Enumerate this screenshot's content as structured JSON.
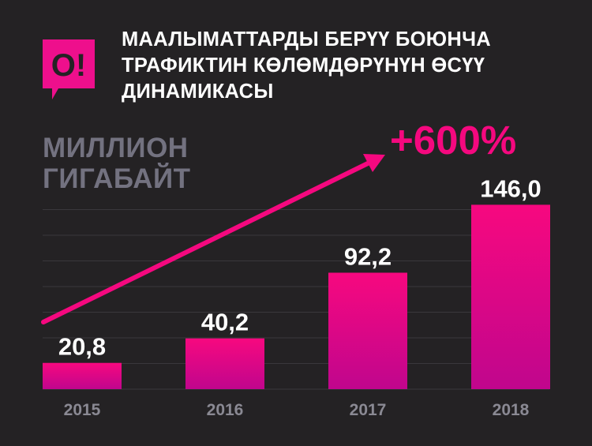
{
  "header": {
    "title_lines": [
      "МААЛЫМАТТАРДЫ БЕРҮҮ БОЮНЧА",
      "ТРАФИКТИН КӨЛӨМДӨРҮНҮН ӨСҮҮ",
      "ДИНАМИКАСЫ"
    ]
  },
  "brand": {
    "logo_text": "O!",
    "accent_color": "#f5087f",
    "logo_color": "#ee0f8c"
  },
  "colors": {
    "background": "#242224",
    "bar_top": "#f7087f",
    "bar_bottom": "#c0068d",
    "gridline": "#3a383c",
    "unit_text": "#737280",
    "year_text": "#8a8993",
    "value_text": "#ffffff"
  },
  "chart_data": {
    "type": "bar",
    "title": "МААЛЫМАТТАРДЫ БЕРҮҮ БОЮНЧА ТРАФИКТИН КӨЛӨМДӨРҮНҮН ӨСҮҮ ДИНАМИКАСЫ",
    "ylabel_lines": [
      "МИЛЛИОН",
      "ГИГАБАЙТ"
    ],
    "categories": [
      "2015",
      "2016",
      "2017",
      "2018"
    ],
    "values": [
      20.8,
      40.2,
      92.2,
      146.0
    ],
    "value_labels": [
      "20,8",
      "40,2",
      "92,2",
      "146,0"
    ],
    "ylim": [
      0,
      150
    ],
    "grid": true,
    "annotation": {
      "text": "+600%",
      "style": "trend-arrow"
    }
  }
}
